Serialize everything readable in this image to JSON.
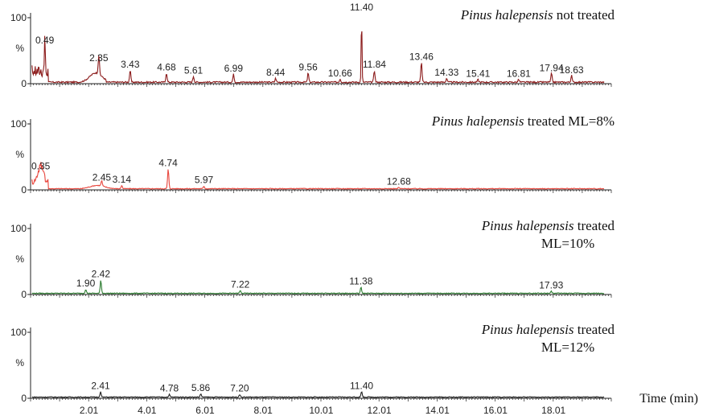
{
  "chart_data": {
    "type": "line",
    "xlabel": "Time (min)",
    "xlim": [
      0.0,
      20.0
    ],
    "x_tick_labels": [
      "2.01",
      "4.01",
      "6.01",
      "8.01",
      "10.01",
      "12.01",
      "14.01",
      "16.01",
      "18.01"
    ],
    "x_tick_values": [
      2.01,
      4.01,
      6.01,
      8.01,
      10.01,
      12.01,
      14.01,
      16.01,
      18.01
    ],
    "y_tick_labels": [
      "100",
      "%",
      "0"
    ],
    "ylim": [
      0,
      100
    ],
    "panels": [
      {
        "species": "Pinus halepensis",
        "title_rest": " not treated",
        "title_line2": "",
        "color": "#8b1a1a",
        "peaks": [
          {
            "x": 0.49,
            "y": 55,
            "label": "0.49"
          },
          {
            "x": 2.35,
            "y": 28,
            "label": "2.35"
          },
          {
            "x": 3.43,
            "y": 18,
            "label": "3.43"
          },
          {
            "x": 4.68,
            "y": 14,
            "label": "4.68"
          },
          {
            "x": 5.61,
            "y": 9,
            "label": "5.61"
          },
          {
            "x": 6.99,
            "y": 12,
            "label": "6.99"
          },
          {
            "x": 8.44,
            "y": 6,
            "label": "8.44"
          },
          {
            "x": 9.56,
            "y": 14,
            "label": "9.56"
          },
          {
            "x": 10.66,
            "y": 5,
            "label": "10.66"
          },
          {
            "x": 11.4,
            "y": 100,
            "label": "11.40"
          },
          {
            "x": 11.84,
            "y": 18,
            "label": "11.84"
          },
          {
            "x": 13.46,
            "y": 30,
            "label": "13.46"
          },
          {
            "x": 14.33,
            "y": 6,
            "label": "14.33"
          },
          {
            "x": 15.41,
            "y": 4,
            "label": "15.41"
          },
          {
            "x": 16.81,
            "y": 4,
            "label": "16.81"
          },
          {
            "x": 17.94,
            "y": 13,
            "label": "17.94"
          },
          {
            "x": 18.63,
            "y": 10,
            "label": "18.63"
          }
        ]
      },
      {
        "species": "Pinus halepensis",
        "title_rest": " treated ML=8%",
        "title_line2": "",
        "color": "#e8453c",
        "peaks": [
          {
            "x": 0.35,
            "y": 25,
            "label": "0.35"
          },
          {
            "x": 2.45,
            "y": 8,
            "label": "2.45"
          },
          {
            "x": 3.14,
            "y": 5,
            "label": "3.14"
          },
          {
            "x": 4.74,
            "y": 30,
            "label": "4.74"
          },
          {
            "x": 5.97,
            "y": 4,
            "label": "5.97"
          },
          {
            "x": 12.68,
            "y": 2,
            "label": "12.68"
          }
        ]
      },
      {
        "species": "Pinus halepensis",
        "title_rest": " treated",
        "title_line2": "ML=10%",
        "color": "#2e7d32",
        "peaks": [
          {
            "x": 1.9,
            "y": 6,
            "label": "1.90"
          },
          {
            "x": 2.42,
            "y": 20,
            "label": "2.42"
          },
          {
            "x": 7.22,
            "y": 4,
            "label": "7.22"
          },
          {
            "x": 11.38,
            "y": 9,
            "label": "11.38"
          },
          {
            "x": 17.93,
            "y": 3,
            "label": "17.93"
          }
        ]
      },
      {
        "species": "Pinus halepensis",
        "title_rest": " treated",
        "title_line2": "ML=12%",
        "color": "#222222",
        "peaks": [
          {
            "x": 2.41,
            "y": 8,
            "label": "2.41"
          },
          {
            "x": 4.78,
            "y": 4,
            "label": "4.78"
          },
          {
            "x": 5.86,
            "y": 5,
            "label": "5.86"
          },
          {
            "x": 7.2,
            "y": 4,
            "label": "7.20"
          },
          {
            "x": 11.4,
            "y": 8,
            "label": "11.40"
          }
        ]
      }
    ]
  }
}
